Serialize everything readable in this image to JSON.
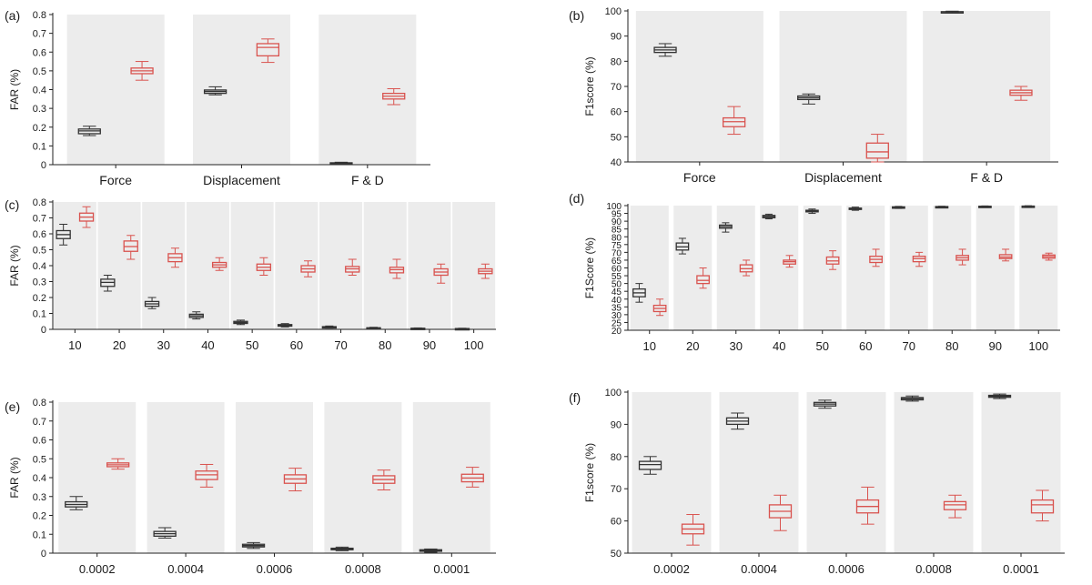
{
  "chart_data": [
    {
      "panel_label": "(a)",
      "type": "box",
      "ylabel": "FAR (%)",
      "ylim": [
        0,
        0.8
      ],
      "yticks": [
        "0",
        "0.1",
        "0.2",
        "0.3",
        "0.4",
        "0.5",
        "0.6",
        "0.7",
        "0.8"
      ],
      "categories": [
        "Force",
        "Displacement",
        "F & D"
      ],
      "series_colors": [
        "#333333",
        "#d9534f"
      ],
      "boxes": [
        [
          {
            "min": 0.155,
            "q1": 0.165,
            "median": 0.18,
            "q3": 0.19,
            "max": 0.205
          },
          {
            "min": 0.45,
            "q1": 0.485,
            "median": 0.5,
            "q3": 0.515,
            "max": 0.55
          }
        ],
        [
          {
            "min": 0.372,
            "q1": 0.38,
            "median": 0.39,
            "q3": 0.398,
            "max": 0.415
          },
          {
            "min": 0.545,
            "q1": 0.58,
            "median": 0.625,
            "q3": 0.645,
            "max": 0.67
          }
        ],
        [
          {
            "min": 0.002,
            "q1": 0.005,
            "median": 0.008,
            "q3": 0.01,
            "max": 0.013
          },
          {
            "min": 0.32,
            "q1": 0.35,
            "median": 0.365,
            "q3": 0.38,
            "max": 0.405
          }
        ]
      ]
    },
    {
      "panel_label": "(b)",
      "type": "box",
      "ylabel": "F1score (%)",
      "ylim": [
        40,
        100
      ],
      "yticks": [
        "40",
        "50",
        "60",
        "70",
        "80",
        "90",
        "100"
      ],
      "categories": [
        "Force",
        "Displacement",
        "F & D"
      ],
      "series_colors": [
        "#333333",
        "#d9534f"
      ],
      "boxes": [
        [
          {
            "min": 82,
            "q1": 83.5,
            "median": 84.5,
            "q3": 85.5,
            "max": 87
          },
          {
            "min": 51,
            "q1": 54,
            "median": 56,
            "q3": 57.5,
            "max": 62
          }
        ],
        [
          {
            "min": 63,
            "q1": 64.8,
            "median": 65.5,
            "q3": 66.2,
            "max": 67
          },
          {
            "min": 40,
            "q1": 41.5,
            "median": 44,
            "q3": 47.5,
            "max": 51
          }
        ],
        [
          {
            "min": 99.2,
            "q1": 99.4,
            "median": 99.6,
            "q3": 99.7,
            "max": 99.9
          },
          {
            "min": 64.5,
            "q1": 66.5,
            "median": 67.5,
            "q3": 68.5,
            "max": 70
          }
        ]
      ]
    },
    {
      "panel_label": "(c)",
      "type": "box",
      "ylabel": "FAR (%)",
      "ylim": [
        0,
        0.8
      ],
      "yticks": [
        "0",
        "0.1",
        "0.2",
        "0.3",
        "0.4",
        "0.5",
        "0.6",
        "0.7",
        "0.8"
      ],
      "categories": [
        "10",
        "20",
        "30",
        "40",
        "50",
        "60",
        "70",
        "80",
        "90",
        "100"
      ],
      "series_colors": [
        "#333333",
        "#d9534f"
      ],
      "boxes": [
        [
          {
            "min": 0.53,
            "q1": 0.57,
            "median": 0.595,
            "q3": 0.62,
            "max": 0.66
          },
          {
            "min": 0.64,
            "q1": 0.68,
            "median": 0.705,
            "q3": 0.73,
            "max": 0.77
          }
        ],
        [
          {
            "min": 0.24,
            "q1": 0.27,
            "median": 0.295,
            "q3": 0.315,
            "max": 0.34
          },
          {
            "min": 0.44,
            "q1": 0.49,
            "median": 0.52,
            "q3": 0.555,
            "max": 0.59
          }
        ],
        [
          {
            "min": 0.13,
            "q1": 0.145,
            "median": 0.16,
            "q3": 0.175,
            "max": 0.2
          },
          {
            "min": 0.39,
            "q1": 0.425,
            "median": 0.45,
            "q3": 0.475,
            "max": 0.51
          }
        ],
        [
          {
            "min": 0.065,
            "q1": 0.075,
            "median": 0.085,
            "q3": 0.095,
            "max": 0.11
          },
          {
            "min": 0.37,
            "q1": 0.39,
            "median": 0.405,
            "q3": 0.42,
            "max": 0.45
          }
        ],
        [
          {
            "min": 0.03,
            "q1": 0.037,
            "median": 0.043,
            "q3": 0.05,
            "max": 0.058
          },
          {
            "min": 0.34,
            "q1": 0.37,
            "median": 0.39,
            "q3": 0.41,
            "max": 0.45
          }
        ],
        [
          {
            "min": 0.015,
            "q1": 0.02,
            "median": 0.025,
            "q3": 0.03,
            "max": 0.036
          },
          {
            "min": 0.33,
            "q1": 0.36,
            "median": 0.38,
            "q3": 0.4,
            "max": 0.43
          }
        ],
        [
          {
            "min": 0.008,
            "q1": 0.011,
            "median": 0.014,
            "q3": 0.017,
            "max": 0.021
          },
          {
            "min": 0.34,
            "q1": 0.36,
            "median": 0.38,
            "q3": 0.395,
            "max": 0.44
          }
        ],
        [
          {
            "min": 0.004,
            "q1": 0.006,
            "median": 0.008,
            "q3": 0.01,
            "max": 0.013
          },
          {
            "min": 0.32,
            "q1": 0.355,
            "median": 0.375,
            "q3": 0.39,
            "max": 0.44
          }
        ],
        [
          {
            "min": 0.002,
            "q1": 0.004,
            "median": 0.005,
            "q3": 0.007,
            "max": 0.009
          },
          {
            "min": 0.29,
            "q1": 0.34,
            "median": 0.36,
            "q3": 0.38,
            "max": 0.41
          }
        ],
        [
          {
            "min": 0.001,
            "q1": 0.003,
            "median": 0.004,
            "q3": 0.005,
            "max": 0.007
          },
          {
            "min": 0.32,
            "q1": 0.35,
            "median": 0.365,
            "q3": 0.38,
            "max": 0.41
          }
        ]
      ]
    },
    {
      "panel_label": "(d)",
      "type": "box",
      "ylabel": "F1Score (%)",
      "ylim": [
        20,
        100
      ],
      "yticks": [
        "20",
        "25",
        "30",
        "35",
        "40",
        "45",
        "50",
        "55",
        "60",
        "65",
        "70",
        "75",
        "80",
        "85",
        "90",
        "95",
        "100"
      ],
      "categories": [
        "10",
        "20",
        "30",
        "40",
        "50",
        "60",
        "70",
        "80",
        "90",
        "100"
      ],
      "series_colors": [
        "#333333",
        "#d9534f"
      ],
      "boxes": [
        [
          {
            "min": 38,
            "q1": 41.5,
            "median": 44,
            "q3": 46.5,
            "max": 50
          },
          {
            "min": 29.5,
            "q1": 32,
            "median": 34,
            "q3": 36,
            "max": 40
          }
        ],
        [
          {
            "min": 69,
            "q1": 71.5,
            "median": 73.5,
            "q3": 76,
            "max": 79
          },
          {
            "min": 47,
            "q1": 50,
            "median": 52,
            "q3": 55,
            "max": 60
          }
        ],
        [
          {
            "min": 83,
            "q1": 85.5,
            "median": 86.5,
            "q3": 87.5,
            "max": 89
          },
          {
            "min": 55,
            "q1": 57.5,
            "median": 59.5,
            "q3": 62,
            "max": 65
          }
        ],
        [
          {
            "min": 91.5,
            "q1": 92.2,
            "median": 93,
            "q3": 93.7,
            "max": 94.5
          },
          {
            "min": 60.5,
            "q1": 62.5,
            "median": 64,
            "q3": 65,
            "max": 68
          }
        ],
        [
          {
            "min": 95,
            "q1": 96,
            "median": 96.5,
            "q3": 97,
            "max": 97.8
          },
          {
            "min": 59,
            "q1": 62.5,
            "median": 64.5,
            "q3": 67,
            "max": 71
          }
        ],
        [
          {
            "min": 97,
            "q1": 97.6,
            "median": 98,
            "q3": 98.4,
            "max": 99
          },
          {
            "min": 61,
            "q1": 63.5,
            "median": 65.5,
            "q3": 67.5,
            "max": 72
          }
        ],
        [
          {
            "min": 98.2,
            "q1": 98.6,
            "median": 98.9,
            "q3": 99.2,
            "max": 99.5
          },
          {
            "min": 61,
            "q1": 64,
            "median": 66,
            "q3": 67.5,
            "max": 70
          }
        ],
        [
          {
            "min": 98.8,
            "q1": 99,
            "median": 99.2,
            "q3": 99.4,
            "max": 99.6
          },
          {
            "min": 62,
            "q1": 65,
            "median": 66.5,
            "q3": 68,
            "max": 72
          }
        ],
        [
          {
            "min": 99.2,
            "q1": 99.4,
            "median": 99.5,
            "q3": 99.6,
            "max": 99.8
          },
          {
            "min": 64.5,
            "q1": 66,
            "median": 67,
            "q3": 68.5,
            "max": 72
          }
        ],
        [
          {
            "min": 99.3,
            "q1": 99.5,
            "median": 99.6,
            "q3": 99.7,
            "max": 99.9
          },
          {
            "min": 65,
            "q1": 66.3,
            "median": 67.3,
            "q3": 68.3,
            "max": 69.5
          }
        ]
      ]
    },
    {
      "panel_label": "(e)",
      "type": "box",
      "ylabel": "FAR (%)",
      "ylim": [
        0,
        0.8
      ],
      "yticks": [
        "0",
        "0.1",
        "0.2",
        "0.3",
        "0.4",
        "0.5",
        "0.6",
        "0.7",
        "0.8"
      ],
      "categories": [
        "0.0002",
        "0.0004",
        "0.0006",
        "0.0008",
        "0.0001"
      ],
      "series_colors": [
        "#333333",
        "#d9534f"
      ],
      "boxes": [
        [
          {
            "min": 0.23,
            "q1": 0.245,
            "median": 0.258,
            "q3": 0.272,
            "max": 0.3
          },
          {
            "min": 0.445,
            "q1": 0.458,
            "median": 0.468,
            "q3": 0.478,
            "max": 0.5
          }
        ],
        [
          {
            "min": 0.08,
            "q1": 0.09,
            "median": 0.103,
            "q3": 0.115,
            "max": 0.135
          },
          {
            "min": 0.35,
            "q1": 0.39,
            "median": 0.415,
            "q3": 0.435,
            "max": 0.47
          }
        ],
        [
          {
            "min": 0.025,
            "q1": 0.033,
            "median": 0.04,
            "q3": 0.047,
            "max": 0.056
          },
          {
            "min": 0.33,
            "q1": 0.37,
            "median": 0.393,
            "q3": 0.415,
            "max": 0.45
          }
        ],
        [
          {
            "min": 0.013,
            "q1": 0.018,
            "median": 0.022,
            "q3": 0.026,
            "max": 0.032
          },
          {
            "min": 0.335,
            "q1": 0.37,
            "median": 0.39,
            "q3": 0.41,
            "max": 0.44
          }
        ],
        [
          {
            "min": 0.005,
            "q1": 0.01,
            "median": 0.014,
            "q3": 0.018,
            "max": 0.022
          },
          {
            "min": 0.35,
            "q1": 0.378,
            "median": 0.398,
            "q3": 0.418,
            "max": 0.455
          }
        ]
      ]
    },
    {
      "panel_label": "(f)",
      "type": "box",
      "ylabel": "F1score (%)",
      "ylim": [
        50,
        100
      ],
      "yticks": [
        "50",
        "60",
        "70",
        "80",
        "90",
        "100"
      ],
      "categories": [
        "0.0002",
        "0.0004",
        "0.0006",
        "0.0008",
        "0.0001"
      ],
      "series_colors": [
        "#333333",
        "#d9534f"
      ],
      "boxes": [
        [
          {
            "min": 74.5,
            "q1": 76,
            "median": 77.5,
            "q3": 78.5,
            "max": 80
          },
          {
            "min": 52.5,
            "q1": 56,
            "median": 57.5,
            "q3": 59,
            "max": 62
          }
        ],
        [
          {
            "min": 88.5,
            "q1": 90,
            "median": 91,
            "q3": 92,
            "max": 93.5
          },
          {
            "min": 57,
            "q1": 61,
            "median": 63,
            "q3": 65,
            "max": 68
          }
        ],
        [
          {
            "min": 95,
            "q1": 95.7,
            "median": 96.3,
            "q3": 96.8,
            "max": 97.5
          },
          {
            "min": 59,
            "q1": 62.5,
            "median": 64.5,
            "q3": 66.5,
            "max": 70.5
          }
        ],
        [
          {
            "min": 97.2,
            "q1": 97.6,
            "median": 98,
            "q3": 98.3,
            "max": 98.8
          },
          {
            "min": 61,
            "q1": 63.5,
            "median": 65,
            "q3": 66,
            "max": 68
          }
        ],
        [
          {
            "min": 98,
            "q1": 98.4,
            "median": 98.7,
            "q3": 99,
            "max": 99.4
          },
          {
            "min": 60,
            "q1": 62.5,
            "median": 65,
            "q3": 66.5,
            "max": 69.5
          }
        ]
      ]
    }
  ]
}
